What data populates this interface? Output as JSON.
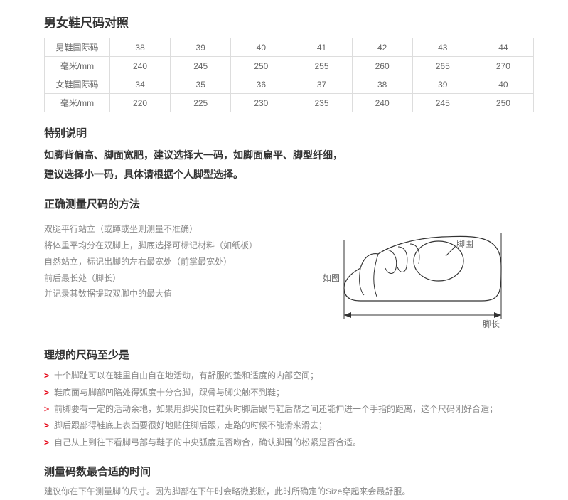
{
  "mainTitle": "男女鞋尺码对照",
  "sizeTable": {
    "rows": [
      {
        "label": "男鞋国际码",
        "cells": [
          "38",
          "39",
          "40",
          "41",
          "42",
          "43",
          "44"
        ]
      },
      {
        "label": "毫米/mm",
        "cells": [
          "240",
          "245",
          "250",
          "255",
          "260",
          "265",
          "270"
        ]
      },
      {
        "label": "女鞋国际码",
        "cells": [
          "34",
          "35",
          "36",
          "37",
          "38",
          "39",
          "40"
        ]
      },
      {
        "label": "毫米/mm",
        "cells": [
          "220",
          "225",
          "230",
          "235",
          "240",
          "245",
          "250"
        ]
      }
    ],
    "border_color": "#dddddd",
    "text_color": "#666666",
    "fontsize": 12
  },
  "specialNote": {
    "title": "特别说明",
    "line1": "如脚背偏高、脚面宽肥，建议选择大一码，如脚面扁平、脚型纤细，",
    "line2": "建议选择小一码，具体请根据个人脚型选择。"
  },
  "measure": {
    "title": "正确测量尺码的方法",
    "steps": [
      "双腿平行站立（或蹲或坐则测量不准确）",
      "将体重平均分在双脚上，脚底选择可标记材料（如纸板）",
      "自然站立，标记出脚的左右最宽处（前掌最宽处）",
      "前后最长处（脚长）",
      "并记录其数据提取双脚中的最大值"
    ],
    "figure": {
      "label_asShown": "如图",
      "label_footCirc": "脚围",
      "label_footLength": "脚长",
      "stroke_color": "#333333",
      "fill_color": "#ffffff",
      "text_color": "#666666"
    }
  },
  "ideal": {
    "title": "理想的尺码至少是",
    "bullets": [
      "十个脚趾可以在鞋里自由自在地活动，有舒服的垫和适度的内部空间；",
      "鞋底面与脚部凹陷处得弧度十分合脚，踝骨与脚尖触不到鞋；",
      "前脚要有一定的活动余地，如果用脚尖顶住鞋头时脚后跟与鞋后帮之间还能伸进一个手指的距离，这个尺码刚好合适；",
      "脚后跟部得鞋底上表面要很好地贴住脚后跟，走路的时候不能滑来滑去；",
      "自己从上到往下看脚弓部与鞋子的中央弧度是否吻合，确认脚围的松紧是否合适。"
    ],
    "bullet_color": "#e60012"
  },
  "bestTime": {
    "title": "测量码数最合适的时间",
    "text": "建议你在下午测量脚的尺寸。因为脚部在下午时会略微膨胀，此时所确定的Size穿起来会最舒服。"
  }
}
